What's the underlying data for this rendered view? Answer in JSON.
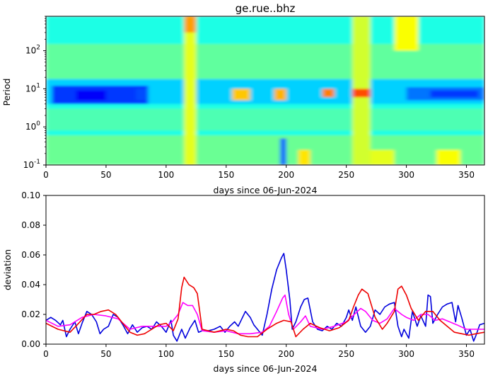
{
  "chart_data": [
    {
      "type": "heatmap",
      "title": "ge.rue..bhz",
      "xlabel": "days since 06-Jun-2024",
      "ylabel": "Period",
      "xlim": [
        0,
        365
      ],
      "ylim": [
        0.1,
        800
      ],
      "yscale": "log",
      "x_ticks": [
        0,
        50,
        100,
        150,
        200,
        250,
        300,
        350
      ],
      "y_ticks": [
        {
          "value": 0.1,
          "label": "10^-1"
        },
        {
          "value": 1,
          "label": "10^0"
        },
        {
          "value": 10,
          "label": "10^1"
        },
        {
          "value": 100,
          "label": "10^2"
        }
      ],
      "colormap": "jet",
      "color_range": [
        0,
        1
      ],
      "features": [
        {
          "x0": 0,
          "x1": 365,
          "y0": 0.1,
          "y1": 800,
          "level": 0.4
        },
        {
          "x0": 0,
          "x1": 365,
          "y0": 15,
          "y1": 150,
          "level": 0.47
        },
        {
          "x0": 0,
          "x1": 365,
          "y0": 0.8,
          "y1": 3,
          "level": 0.45
        },
        {
          "x0": 0,
          "x1": 365,
          "y0": 0.1,
          "y1": 0.6,
          "level": 0.48
        },
        {
          "x0": 0,
          "x1": 365,
          "y0": 4,
          "y1": 18,
          "level": 0.33
        },
        {
          "x0": 5,
          "x1": 85,
          "y0": 4,
          "y1": 12,
          "level": 0.18
        },
        {
          "x0": 25,
          "x1": 50,
          "y0": 5,
          "y1": 9,
          "level": 0.12
        },
        {
          "x0": 75,
          "x1": 85,
          "y0": 5,
          "y1": 10,
          "level": 0.2
        },
        {
          "x0": 300,
          "x1": 365,
          "y0": 5,
          "y1": 11,
          "level": 0.24
        },
        {
          "x0": 320,
          "x1": 360,
          "y0": 6,
          "y1": 9,
          "level": 0.18
        },
        {
          "x0": 115,
          "x1": 125,
          "y0": 0.1,
          "y1": 800,
          "level": 0.6
        },
        {
          "x0": 115,
          "x1": 125,
          "y0": 300,
          "y1": 800,
          "level": 0.72
        },
        {
          "x0": 255,
          "x1": 270,
          "y0": 0.1,
          "y1": 800,
          "level": 0.58
        },
        {
          "x0": 155,
          "x1": 170,
          "y0": 5,
          "y1": 10,
          "level": 0.68
        },
        {
          "x0": 190,
          "x1": 200,
          "y0": 5,
          "y1": 10,
          "level": 0.7
        },
        {
          "x0": 230,
          "x1": 240,
          "y0": 6,
          "y1": 10,
          "level": 0.75
        },
        {
          "x0": 255,
          "x1": 270,
          "y0": 6,
          "y1": 10,
          "level": 0.8
        },
        {
          "x0": 195,
          "x1": 200,
          "y0": 0.1,
          "y1": 0.5,
          "level": 0.22
        },
        {
          "x0": 210,
          "x1": 220,
          "y0": 0.1,
          "y1": 0.25,
          "level": 0.65
        },
        {
          "x0": 270,
          "x1": 290,
          "y0": 0.1,
          "y1": 0.25,
          "level": 0.6
        },
        {
          "x0": 325,
          "x1": 345,
          "y0": 0.1,
          "y1": 0.25,
          "level": 0.62
        },
        {
          "x0": 290,
          "x1": 310,
          "y0": 100,
          "y1": 800,
          "level": 0.62
        }
      ]
    },
    {
      "type": "line",
      "title": "",
      "xlabel": "days since 06-Jun-2024",
      "ylabel": "deviation",
      "xlim": [
        0,
        365
      ],
      "ylim": [
        0,
        0.1
      ],
      "x_ticks": [
        0,
        50,
        100,
        150,
        200,
        250,
        300,
        350
      ],
      "y_ticks": [
        "0.00",
        "0.02",
        "0.04",
        "0.06",
        "0.08",
        "0.10"
      ],
      "series": [
        {
          "color": "#0000dd",
          "points": [
            [
              0,
              0.016
            ],
            [
              4,
              0.018
            ],
            [
              8,
              0.016
            ],
            [
              12,
              0.013
            ],
            [
              14,
              0.016
            ],
            [
              17,
              0.005
            ],
            [
              20,
              0.01
            ],
            [
              24,
              0.015
            ],
            [
              27,
              0.007
            ],
            [
              30,
              0.014
            ],
            [
              34,
              0.022
            ],
            [
              38,
              0.02
            ],
            [
              42,
              0.015
            ],
            [
              45,
              0.007
            ],
            [
              48,
              0.01
            ],
            [
              52,
              0.012
            ],
            [
              56,
              0.02
            ],
            [
              60,
              0.018
            ],
            [
              64,
              0.013
            ],
            [
              68,
              0.007
            ],
            [
              72,
              0.013
            ],
            [
              76,
              0.008
            ],
            [
              80,
              0.011
            ],
            [
              84,
              0.012
            ],
            [
              88,
              0.01
            ],
            [
              92,
              0.015
            ],
            [
              96,
              0.012
            ],
            [
              100,
              0.008
            ],
            [
              104,
              0.016
            ],
            [
              106,
              0.006
            ],
            [
              109,
              0.002
            ],
            [
              113,
              0.01
            ],
            [
              116,
              0.004
            ],
            [
              120,
              0.011
            ],
            [
              124,
              0.016
            ],
            [
              127,
              0.008
            ],
            [
              130,
              0.009
            ],
            [
              135,
              0.009
            ],
            [
              140,
              0.01
            ],
            [
              145,
              0.012
            ],
            [
              149,
              0.008
            ],
            [
              153,
              0.012
            ],
            [
              157,
              0.015
            ],
            [
              160,
              0.012
            ],
            [
              163,
              0.017
            ],
            [
              166,
              0.022
            ],
            [
              170,
              0.018
            ],
            [
              173,
              0.013
            ],
            [
              176,
              0.01
            ],
            [
              180,
              0.006
            ],
            [
              184,
              0.02
            ],
            [
              188,
              0.037
            ],
            [
              192,
              0.05
            ],
            [
              196,
              0.058
            ],
            [
              198,
              0.061
            ],
            [
              200,
              0.05
            ],
            [
              203,
              0.03
            ],
            [
              205,
              0.01
            ],
            [
              208,
              0.015
            ],
            [
              212,
              0.025
            ],
            [
              215,
              0.03
            ],
            [
              218,
              0.031
            ],
            [
              222,
              0.015
            ],
            [
              226,
              0.01
            ],
            [
              230,
              0.009
            ],
            [
              234,
              0.012
            ],
            [
              238,
              0.01
            ],
            [
              242,
              0.014
            ],
            [
              246,
              0.012
            ],
            [
              250,
              0.018
            ],
            [
              252,
              0.023
            ],
            [
              255,
              0.016
            ],
            [
              258,
              0.025
            ],
            [
              262,
              0.012
            ],
            [
              266,
              0.008
            ],
            [
              270,
              0.012
            ],
            [
              274,
              0.023
            ],
            [
              278,
              0.02
            ],
            [
              282,
              0.025
            ],
            [
              286,
              0.027
            ],
            [
              290,
              0.028
            ],
            [
              293,
              0.012
            ],
            [
              296,
              0.005
            ],
            [
              298,
              0.01
            ],
            [
              302,
              0.004
            ],
            [
              305,
              0.022
            ],
            [
              309,
              0.012
            ],
            [
              312,
              0.019
            ],
            [
              316,
              0.012
            ],
            [
              318,
              0.033
            ],
            [
              320,
              0.032
            ],
            [
              322,
              0.014
            ],
            [
              326,
              0.02
            ],
            [
              330,
              0.025
            ],
            [
              334,
              0.027
            ],
            [
              338,
              0.028
            ],
            [
              341,
              0.015
            ],
            [
              343,
              0.026
            ],
            [
              346,
              0.018
            ],
            [
              350,
              0.006
            ],
            [
              353,
              0.01
            ],
            [
              356,
              0.002
            ],
            [
              358,
              0.006
            ],
            [
              361,
              0.013
            ],
            [
              365,
              0.014
            ]
          ]
        },
        {
          "color": "#ff00ff",
          "points": [
            [
              0,
              0.016
            ],
            [
              10,
              0.012
            ],
            [
              20,
              0.013
            ],
            [
              30,
              0.018
            ],
            [
              40,
              0.02
            ],
            [
              50,
              0.019
            ],
            [
              60,
              0.017
            ],
            [
              70,
              0.01
            ],
            [
              80,
              0.012
            ],
            [
              90,
              0.012
            ],
            [
              100,
              0.012
            ],
            [
              105,
              0.015
            ],
            [
              110,
              0.02
            ],
            [
              114,
              0.028
            ],
            [
              118,
              0.026
            ],
            [
              122,
              0.026
            ],
            [
              126,
              0.02
            ],
            [
              130,
              0.009
            ],
            [
              140,
              0.008
            ],
            [
              150,
              0.009
            ],
            [
              160,
              0.007
            ],
            [
              170,
              0.007
            ],
            [
              180,
              0.008
            ],
            [
              186,
              0.012
            ],
            [
              192,
              0.022
            ],
            [
              197,
              0.031
            ],
            [
              199,
              0.033
            ],
            [
              202,
              0.02
            ],
            [
              206,
              0.01
            ],
            [
              212,
              0.015
            ],
            [
              216,
              0.019
            ],
            [
              220,
              0.012
            ],
            [
              230,
              0.01
            ],
            [
              240,
              0.012
            ],
            [
              250,
              0.015
            ],
            [
              258,
              0.021
            ],
            [
              262,
              0.024
            ],
            [
              266,
              0.022
            ],
            [
              272,
              0.016
            ],
            [
              278,
              0.014
            ],
            [
              284,
              0.017
            ],
            [
              290,
              0.024
            ],
            [
              296,
              0.02
            ],
            [
              300,
              0.018
            ],
            [
              306,
              0.016
            ],
            [
              312,
              0.02
            ],
            [
              318,
              0.02
            ],
            [
              324,
              0.016
            ],
            [
              330,
              0.017
            ],
            [
              336,
              0.015
            ],
            [
              342,
              0.013
            ],
            [
              350,
              0.01
            ],
            [
              360,
              0.01
            ],
            [
              365,
              0.01
            ]
          ]
        },
        {
          "color": "#ee0000",
          "points": [
            [
              0,
              0.014
            ],
            [
              10,
              0.01
            ],
            [
              20,
              0.008
            ],
            [
              26,
              0.013
            ],
            [
              34,
              0.02
            ],
            [
              40,
              0.02
            ],
            [
              46,
              0.022
            ],
            [
              52,
              0.023
            ],
            [
              58,
              0.02
            ],
            [
              64,
              0.014
            ],
            [
              70,
              0.008
            ],
            [
              76,
              0.006
            ],
            [
              82,
              0.007
            ],
            [
              88,
              0.01
            ],
            [
              94,
              0.013
            ],
            [
              100,
              0.014
            ],
            [
              106,
              0.009
            ],
            [
              110,
              0.017
            ],
            [
              113,
              0.038
            ],
            [
              115,
              0.045
            ],
            [
              119,
              0.04
            ],
            [
              123,
              0.038
            ],
            [
              126,
              0.034
            ],
            [
              130,
              0.01
            ],
            [
              140,
              0.008
            ],
            [
              150,
              0.01
            ],
            [
              156,
              0.009
            ],
            [
              162,
              0.006
            ],
            [
              168,
              0.005
            ],
            [
              176,
              0.005
            ],
            [
              184,
              0.01
            ],
            [
              192,
              0.014
            ],
            [
              198,
              0.016
            ],
            [
              204,
              0.015
            ],
            [
              208,
              0.005
            ],
            [
              214,
              0.01
            ],
            [
              220,
              0.014
            ],
            [
              228,
              0.011
            ],
            [
              236,
              0.009
            ],
            [
              244,
              0.011
            ],
            [
              252,
              0.016
            ],
            [
              256,
              0.025
            ],
            [
              260,
              0.033
            ],
            [
              263,
              0.037
            ],
            [
              268,
              0.034
            ],
            [
              274,
              0.018
            ],
            [
              280,
              0.01
            ],
            [
              284,
              0.014
            ],
            [
              290,
              0.022
            ],
            [
              293,
              0.037
            ],
            [
              296,
              0.039
            ],
            [
              300,
              0.033
            ],
            [
              304,
              0.024
            ],
            [
              310,
              0.016
            ],
            [
              316,
              0.022
            ],
            [
              322,
              0.022
            ],
            [
              328,
              0.016
            ],
            [
              334,
              0.012
            ],
            [
              340,
              0.008
            ],
            [
              346,
              0.007
            ],
            [
              352,
              0.006
            ],
            [
              358,
              0.007
            ],
            [
              365,
              0.008
            ]
          ]
        }
      ]
    }
  ]
}
